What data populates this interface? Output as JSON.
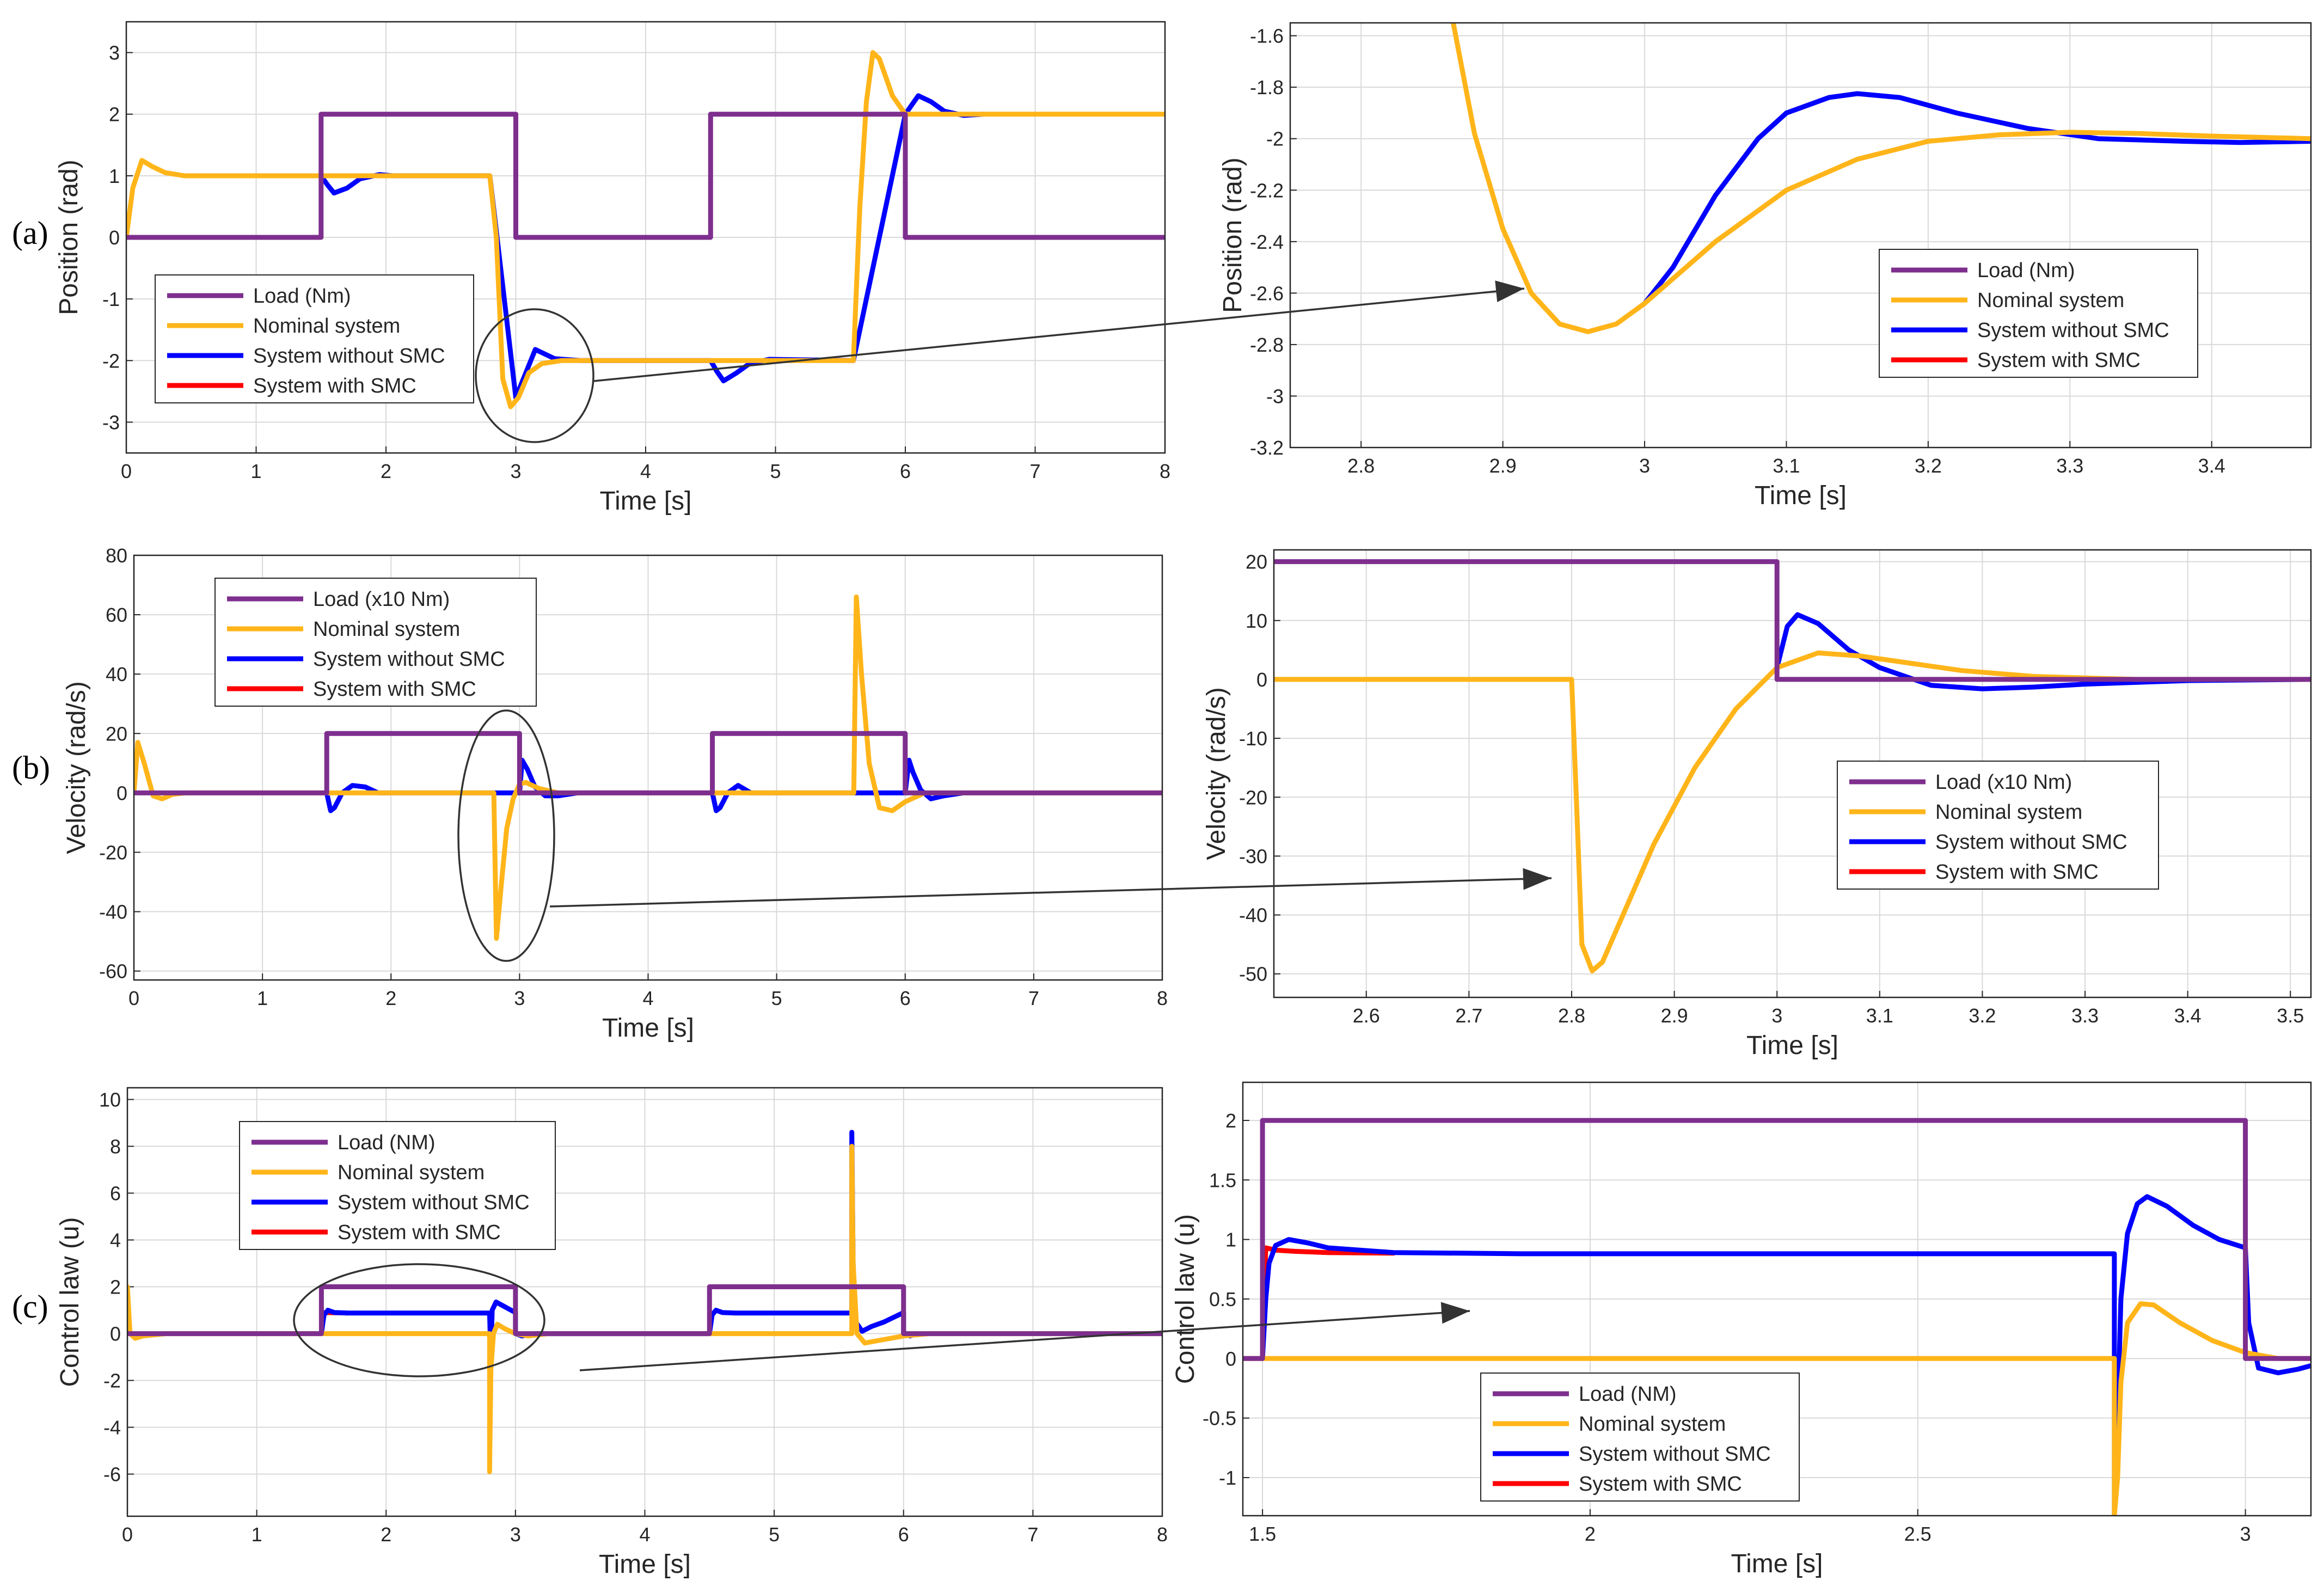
{
  "figure": {
    "colors": {
      "load": "#7E2F8E",
      "nominal": "#FFB51A",
      "without_smc": "#0000FF",
      "with_smc": "#FF0000",
      "grid": "#d9d9d9",
      "annotation": "#333333"
    },
    "panel_labels": [
      "(a)",
      "(b)",
      "(c)"
    ]
  },
  "chart_data": [
    {
      "id": "a_full",
      "type": "line",
      "panel": "(a)",
      "xlabel": "Time [s]",
      "ylabel": "Position (rad)",
      "xlim": [
        0,
        8
      ],
      "ylim": [
        -3.5,
        3.5
      ],
      "xticks": [
        0,
        1,
        2,
        3,
        4,
        5,
        6,
        7,
        8
      ],
      "yticks": [
        -3,
        -2,
        -1,
        0,
        1,
        2,
        3
      ],
      "legend": [
        "Load (Nm)",
        "Nominal system",
        "System without SMC",
        "System with SMC"
      ],
      "legend_position": "bottom-left",
      "series": [
        {
          "name": "Load (Nm)",
          "color": "#7E2F8E",
          "x": [
            0,
            1.5,
            1.5,
            3,
            3,
            4.5,
            4.5,
            6,
            6,
            8
          ],
          "y": [
            0,
            0,
            2,
            2,
            0,
            0,
            2,
            2,
            0,
            0
          ]
        },
        {
          "name": "Nominal system",
          "color": "#FFB51A",
          "x": [
            0,
            0.05,
            0.12,
            0.2,
            0.3,
            0.45,
            0.7,
            2.8,
            2.85,
            2.9,
            2.96,
            3.02,
            3.1,
            3.2,
            3.35,
            5.6,
            5.65,
            5.7,
            5.75,
            5.8,
            5.9,
            6.0,
            6.15,
            8
          ],
          "y": [
            0,
            0.8,
            1.25,
            1.15,
            1.05,
            1.0,
            1.0,
            1.0,
            0,
            -2.3,
            -2.75,
            -2.6,
            -2.2,
            -2.05,
            -2.0,
            -2.0,
            0.5,
            2.2,
            3.0,
            2.9,
            2.3,
            2.0,
            2.0,
            2.0
          ]
        },
        {
          "name": "System without SMC",
          "color": "#0000FF",
          "x": [
            1.5,
            1.55,
            1.6,
            1.7,
            1.8,
            1.95,
            2.05,
            2.8,
            3.0,
            3.15,
            3.3,
            3.5,
            4.5,
            4.55,
            4.6,
            4.7,
            4.8,
            4.95,
            5.6,
            6.0,
            6.05,
            6.1,
            6.2,
            6.3,
            6.45,
            6.6
          ],
          "y": [
            1.0,
            0.85,
            0.72,
            0.8,
            0.95,
            1.02,
            1.0,
            1.0,
            -2.6,
            -1.82,
            -1.97,
            -2.0,
            -2.0,
            -2.18,
            -2.33,
            -2.2,
            -2.05,
            -1.98,
            -2.0,
            2.0,
            2.15,
            2.3,
            2.2,
            2.05,
            1.98,
            2.0
          ]
        },
        {
          "name": "System with SMC",
          "color": "#FF0000",
          "x": [],
          "y": []
        }
      ],
      "annotations": [
        {
          "type": "ellipse",
          "note": "zoom region around t = 3 s"
        },
        {
          "type": "arrow",
          "note": "to zoomed view"
        }
      ]
    },
    {
      "id": "a_zoom",
      "type": "line",
      "panel": "(a)",
      "xlabel": "Time [s]",
      "ylabel": "Position (rad)",
      "xlim": [
        2.75,
        3.47
      ],
      "ylim": [
        -3.2,
        -1.55
      ],
      "xticks": [
        2.8,
        2.9,
        3,
        3.1,
        3.2,
        3.3,
        3.4
      ],
      "xticklabels": [
        "2.8",
        "2.9",
        "3",
        "3.1",
        "3.2",
        "3.3",
        "3.4"
      ],
      "yticks": [
        -3.2,
        -3,
        -2.8,
        -2.6,
        -2.4,
        -2.2,
        -2,
        -1.8,
        -1.6
      ],
      "yticklabels": [
        "-3.2",
        "-3",
        "-2.8",
        "-2.6",
        "-2.4",
        "-2.2",
        "-2",
        "-1.8",
        "-1.6"
      ],
      "legend": [
        "Load (Nm)",
        "Nominal system",
        "System without SMC",
        "System with SMC"
      ],
      "legend_position": "right",
      "series": [
        {
          "name": "Load (Nm)",
          "color": "#7E2F8E",
          "x": [],
          "y": []
        },
        {
          "name": "Nominal system",
          "color": "#FFB51A",
          "x": [
            2.865,
            2.88,
            2.9,
            2.92,
            2.94,
            2.96,
            2.98,
            3.0,
            3.05,
            3.1,
            3.15,
            3.2,
            3.25,
            3.3,
            3.35,
            3.4,
            3.47
          ],
          "y": [
            -1.55,
            -1.98,
            -2.35,
            -2.6,
            -2.72,
            -2.75,
            -2.72,
            -2.64,
            -2.4,
            -2.2,
            -2.08,
            -2.01,
            -1.985,
            -1.975,
            -1.98,
            -1.99,
            -2.0
          ]
        },
        {
          "name": "System without SMC",
          "color": "#0000FF",
          "x": [
            3.0,
            3.02,
            3.05,
            3.08,
            3.1,
            3.13,
            3.15,
            3.18,
            3.22,
            3.27,
            3.32,
            3.38,
            3.42,
            3.47
          ],
          "y": [
            -2.64,
            -2.5,
            -2.22,
            -2.0,
            -1.9,
            -1.84,
            -1.825,
            -1.84,
            -1.9,
            -1.96,
            -2.0,
            -2.01,
            -2.015,
            -2.01
          ]
        },
        {
          "name": "System with SMC",
          "color": "#FF0000",
          "x": [],
          "y": []
        }
      ]
    },
    {
      "id": "b_full",
      "type": "line",
      "panel": "(b)",
      "xlabel": "Time [s]",
      "ylabel": "Velocity (rad/s)",
      "xlim": [
        0,
        8
      ],
      "ylim": [
        -63,
        80
      ],
      "xticks": [
        0,
        1,
        2,
        3,
        4,
        5,
        6,
        7,
        8
      ],
      "yticks": [
        -60,
        -40,
        -20,
        0,
        20,
        40,
        60,
        80
      ],
      "legend": [
        "Load (x10 Nm)",
        "Nominal system",
        "System without SMC",
        "System with SMC"
      ],
      "legend_position": "top-left",
      "series": [
        {
          "name": "Load (x10 Nm)",
          "color": "#7E2F8E",
          "x": [
            0,
            1.5,
            1.5,
            3,
            3,
            4.5,
            4.5,
            6,
            6,
            8
          ],
          "y": [
            0,
            0,
            20,
            20,
            0,
            0,
            20,
            20,
            0,
            0
          ]
        },
        {
          "name": "Nominal system",
          "color": "#FFB51A",
          "x": [
            0,
            0.03,
            0.08,
            0.15,
            0.22,
            0.3,
            0.4,
            2.8,
            2.82,
            2.86,
            2.9,
            2.95,
            3.0,
            3.05,
            3.15,
            3.3,
            5.6,
            5.62,
            5.66,
            5.72,
            5.8,
            5.9,
            6.0,
            6.15,
            8
          ],
          "y": [
            0,
            17,
            10,
            -1,
            -2,
            -0.5,
            0,
            0,
            -49,
            -30,
            -12,
            -2,
            3,
            3.5,
            1.5,
            0,
            0,
            66,
            40,
            10,
            -5,
            -6,
            -3,
            0,
            0
          ]
        },
        {
          "name": "System without SMC",
          "color": "#0000FF",
          "x": [
            1.5,
            1.53,
            1.56,
            1.62,
            1.7,
            1.8,
            1.9,
            3.0,
            3.02,
            3.06,
            3.12,
            3.2,
            3.3,
            3.45,
            4.5,
            4.53,
            4.56,
            4.62,
            4.7,
            4.8,
            6.0,
            6.03,
            6.06,
            6.12,
            6.2,
            6.3,
            6.45
          ],
          "y": [
            0,
            -6,
            -5,
            0,
            2.5,
            2,
            0,
            0,
            11,
            8,
            2,
            -1,
            -1,
            0,
            0,
            -6,
            -5,
            0,
            2.5,
            0,
            0,
            11,
            7,
            1,
            -2,
            -1,
            0
          ]
        },
        {
          "name": "System with SMC",
          "color": "#FF0000",
          "x": [],
          "y": []
        }
      ],
      "annotations": [
        {
          "type": "ellipse",
          "note": "zoom region around t = 2.9 s"
        },
        {
          "type": "arrow",
          "note": "to zoomed view"
        }
      ]
    },
    {
      "id": "b_zoom",
      "type": "line",
      "panel": "(b)",
      "xlabel": "Time [s]",
      "ylabel": "Velocity (rad/s)",
      "xlim": [
        2.51,
        3.52
      ],
      "ylim": [
        -54,
        22
      ],
      "xticks": [
        2.6,
        2.7,
        2.8,
        2.9,
        3,
        3.1,
        3.2,
        3.3,
        3.4,
        3.5
      ],
      "xticklabels": [
        "2.6",
        "2.7",
        "2.8",
        "2.9",
        "3",
        "3.1",
        "3.2",
        "3.3",
        "3.4",
        "3.5"
      ],
      "yticks": [
        -50,
        -40,
        -30,
        -20,
        -10,
        0,
        10,
        20
      ],
      "legend": [
        "Load (x10 Nm)",
        "Nominal system",
        "System without SMC",
        "System with SMC"
      ],
      "legend_position": "right",
      "series": [
        {
          "name": "Load (x10 Nm)",
          "color": "#7E2F8E",
          "x": [
            2.51,
            3.0,
            3.0,
            3.52
          ],
          "y": [
            20,
            20,
            0,
            0
          ]
        },
        {
          "name": "Nominal system",
          "color": "#FFB51A",
          "x": [
            2.51,
            2.8,
            2.805,
            2.81,
            2.82,
            2.83,
            2.85,
            2.88,
            2.92,
            2.96,
            3.0,
            3.04,
            3.08,
            3.12,
            3.18,
            3.25,
            3.35,
            3.52
          ],
          "y": [
            0,
            0,
            -22,
            -45,
            -49.5,
            -48,
            -40,
            -28,
            -15,
            -5,
            2,
            4.5,
            4,
            3,
            1.5,
            0.5,
            0,
            0
          ]
        },
        {
          "name": "System without SMC",
          "color": "#0000FF",
          "x": [
            3.0,
            3.01,
            3.02,
            3.04,
            3.07,
            3.1,
            3.15,
            3.2,
            3.25,
            3.3,
            3.4,
            3.52
          ],
          "y": [
            2,
            9,
            11,
            9.5,
            5,
            2,
            -1,
            -1.6,
            -1.3,
            -0.8,
            -0.2,
            0
          ]
        },
        {
          "name": "System with SMC",
          "color": "#FF0000",
          "x": [],
          "y": []
        }
      ]
    },
    {
      "id": "c_full",
      "type": "line",
      "panel": "(c)",
      "xlabel": "Time [s]",
      "ylabel": "Control law (u)",
      "xlim": [
        0,
        8
      ],
      "ylim": [
        -7.8,
        10.5
      ],
      "xticks": [
        0,
        1,
        2,
        3,
        4,
        5,
        6,
        7,
        8
      ],
      "yticks": [
        -6,
        -4,
        -2,
        0,
        2,
        4,
        6,
        8,
        10
      ],
      "legend": [
        "Load (NM)",
        "Nominal system",
        "System without SMC",
        "System with SMC"
      ],
      "legend_position": "top-left",
      "series": [
        {
          "name": "Load (NM)",
          "color": "#7E2F8E",
          "x": [
            0,
            1.5,
            1.5,
            3,
            3,
            4.5,
            4.5,
            6,
            6,
            8
          ],
          "y": [
            0,
            0,
            2,
            2,
            0,
            0,
            2,
            2,
            0,
            0
          ]
        },
        {
          "name": "Nominal system",
          "color": "#FFB51A",
          "x": [
            0,
            0.02,
            0.06,
            0.12,
            0.3,
            2.8,
            2.8,
            2.81,
            2.83,
            2.86,
            2.92,
            3.0,
            3.1,
            3.25,
            5.6,
            5.6,
            5.61,
            5.64,
            5.7,
            5.8,
            6.0,
            6.2,
            8
          ],
          "y": [
            2,
            0,
            -0.2,
            -0.1,
            0,
            0,
            -5.9,
            -1.5,
            0,
            0.4,
            0.2,
            0,
            -0.1,
            0,
            0,
            8,
            3,
            0,
            -0.4,
            -0.3,
            -0.1,
            0,
            0
          ]
        },
        {
          "name": "System without SMC",
          "color": "#0000FF",
          "x": [
            1.5,
            1.52,
            1.55,
            1.6,
            1.7,
            2.8,
            2.81,
            2.82,
            2.85,
            2.9,
            3.0,
            3.0,
            3.05,
            3.15,
            4.5,
            4.52,
            4.55,
            4.6,
            4.7,
            5.6,
            5.6,
            5.61,
            5.63,
            5.68,
            5.75,
            5.85,
            6.0,
            6.0,
            6.05,
            6.1
          ],
          "y": [
            0,
            0.8,
            1.0,
            0.9,
            0.88,
            0.88,
            -1.0,
            1.0,
            1.35,
            1.2,
            0.9,
            0,
            -0.1,
            0,
            0,
            0.8,
            1.0,
            0.9,
            0.88,
            0.88,
            8.6,
            3,
            0.5,
            0.1,
            0.3,
            0.5,
            0.9,
            0,
            -0.1,
            0
          ]
        },
        {
          "name": "System with SMC",
          "color": "#FF0000",
          "x": [
            1.5,
            1.52,
            1.7
          ],
          "y": [
            0.92,
            0.9,
            0.88
          ]
        }
      ],
      "annotations": [
        {
          "type": "ellipse",
          "note": "zoom region 1.5 s to 3 s"
        },
        {
          "type": "arrow",
          "note": "to zoomed view"
        }
      ]
    },
    {
      "id": "c_zoom",
      "type": "line",
      "panel": "(c)",
      "xlabel": "Time [s]",
      "ylabel": "Control law (u)",
      "xlim": [
        1.47,
        3.1
      ],
      "ylim": [
        -1.32,
        2.32
      ],
      "xticks": [
        1.5,
        2,
        2.5,
        3
      ],
      "xticklabels": [
        "1.5",
        "2",
        "2.5",
        "3"
      ],
      "yticks": [
        -1,
        -0.5,
        0,
        0.5,
        1,
        1.5,
        2
      ],
      "yticklabels": [
        "-1",
        "-0.5",
        "0",
        "0.5",
        "1",
        "1.5",
        "2"
      ],
      "legend": [
        "Load (NM)",
        "Nominal system",
        "System without SMC",
        "System with SMC"
      ],
      "legend_position": "bottom-left",
      "series": [
        {
          "name": "Load (NM)",
          "color": "#7E2F8E",
          "x": [
            1.47,
            1.5,
            1.5,
            3.0,
            3.0,
            3.1
          ],
          "y": [
            0,
            0,
            2,
            2,
            0,
            0
          ]
        },
        {
          "name": "Nominal system",
          "color": "#FFB51A",
          "x": [
            1.47,
            2.8,
            2.8,
            2.805,
            2.81,
            2.82,
            2.84,
            2.86,
            2.9,
            2.95,
            3.0,
            3.05,
            3.1
          ],
          "y": [
            0,
            0,
            -1.32,
            -1.0,
            -0.2,
            0.3,
            0.46,
            0.45,
            0.3,
            0.15,
            0.05,
            0,
            0
          ]
        },
        {
          "name": "System without SMC",
          "color": "#0000FF",
          "x": [
            1.5,
            1.505,
            1.51,
            1.52,
            1.54,
            1.57,
            1.6,
            1.7,
            1.9,
            2.8,
            2.8,
            2.805,
            2.81,
            2.82,
            2.835,
            2.85,
            2.88,
            2.92,
            2.96,
            3.0,
            3.005,
            3.02,
            3.05,
            3.08,
            3.1
          ],
          "y": [
            0,
            0.5,
            0.8,
            0.95,
            1.0,
            0.97,
            0.93,
            0.89,
            0.88,
            0.88,
            -1.32,
            -0.5,
            0.5,
            1.05,
            1.3,
            1.36,
            1.28,
            1.12,
            1.0,
            0.93,
            0.3,
            -0.08,
            -0.12,
            -0.09,
            -0.06
          ]
        },
        {
          "name": "System with SMC",
          "color": "#FF0000",
          "x": [
            1.5,
            1.505,
            1.52,
            1.55,
            1.6,
            1.7
          ],
          "y": [
            0,
            0.93,
            0.91,
            0.9,
            0.89,
            0.885
          ]
        }
      ]
    }
  ]
}
